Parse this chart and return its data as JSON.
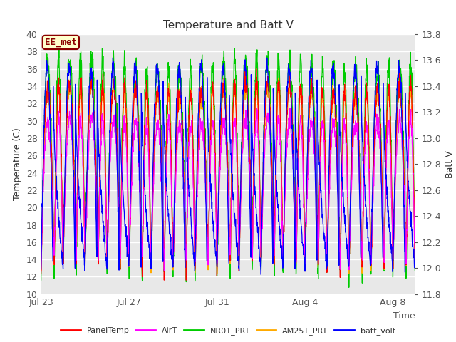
{
  "title": "Temperature and Batt V",
  "xlabel": "Time",
  "ylabel_left": "Temperature (C)",
  "ylabel_right": "Batt V",
  "ylim_left": [
    10,
    40
  ],
  "ylim_right": [
    11.8,
    13.8
  ],
  "xlim": [
    0,
    17
  ],
  "plot_bg_color": "#e8e8e8",
  "fig_bg_color": "#ffffff",
  "annotation_text": "EE_met",
  "annotation_color": "#8B0000",
  "annotation_bg": "#ffffcc",
  "x_tick_labels": [
    "Jul 23",
    "Jul 27",
    "Jul 31",
    "Aug 4",
    "Aug 8"
  ],
  "x_tick_positions": [
    0,
    4,
    8,
    12,
    16
  ],
  "y_left_ticks": [
    10,
    12,
    14,
    16,
    18,
    20,
    22,
    24,
    26,
    28,
    30,
    32,
    34,
    36,
    38,
    40
  ],
  "y_right_ticks": [
    11.8,
    12.0,
    12.2,
    12.4,
    12.6,
    12.8,
    13.0,
    13.2,
    13.4,
    13.6,
    13.8
  ],
  "legend_entries": [
    "PanelTemp",
    "AirT",
    "NR01_PRT",
    "AM25T_PRT",
    "batt_volt"
  ],
  "legend_colors": [
    "#ff0000",
    "#ff00ff",
    "#00cc00",
    "#ffaa00",
    "#0000ff"
  ],
  "title_fontsize": 11,
  "axis_fontsize": 9,
  "tick_fontsize": 9,
  "label_fontsize": 9
}
